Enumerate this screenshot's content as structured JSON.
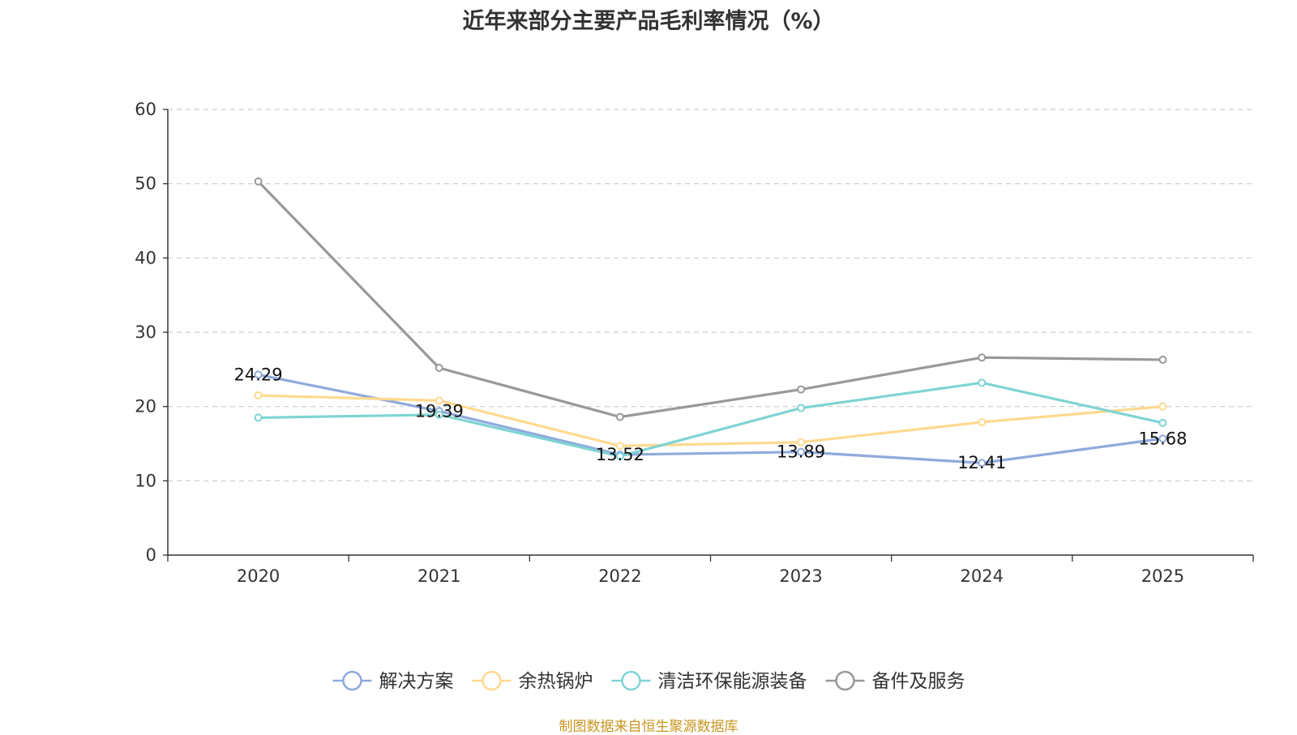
{
  "chart_data": {
    "type": "line",
    "title": "近年来部分主要产品毛利率情况（%）",
    "categories": [
      "2020",
      "2021",
      "2022",
      "2023",
      "2024",
      "2025"
    ],
    "ylim": [
      0,
      60
    ],
    "yticks": [
      0,
      10,
      20,
      30,
      40,
      50,
      60
    ],
    "grid": true,
    "legend_position": "bottom",
    "xlabel": "",
    "ylabel": "",
    "series": [
      {
        "name": "解决方案",
        "color": "#8faadc",
        "values": [
          24.29,
          19.39,
          13.52,
          13.89,
          12.41,
          15.68
        ],
        "labels": [
          "24.29",
          "19.39",
          "13.52",
          "13.89",
          "12.41",
          "15.68"
        ]
      },
      {
        "name": "余热锅炉",
        "color": "#ffd98e",
        "values": [
          21.5,
          20.8,
          14.7,
          15.2,
          17.9,
          20.0
        ]
      },
      {
        "name": "清洁环保能源装备",
        "color": "#7fd4d4",
        "values": [
          18.5,
          18.9,
          13.3,
          19.8,
          23.2,
          17.8
        ]
      },
      {
        "name": "备件及服务",
        "color": "#999999",
        "values": [
          50.3,
          25.2,
          18.6,
          22.3,
          26.6,
          26.3
        ]
      }
    ]
  },
  "footer": {
    "source": "制图数据来自恒生聚源数据库"
  }
}
